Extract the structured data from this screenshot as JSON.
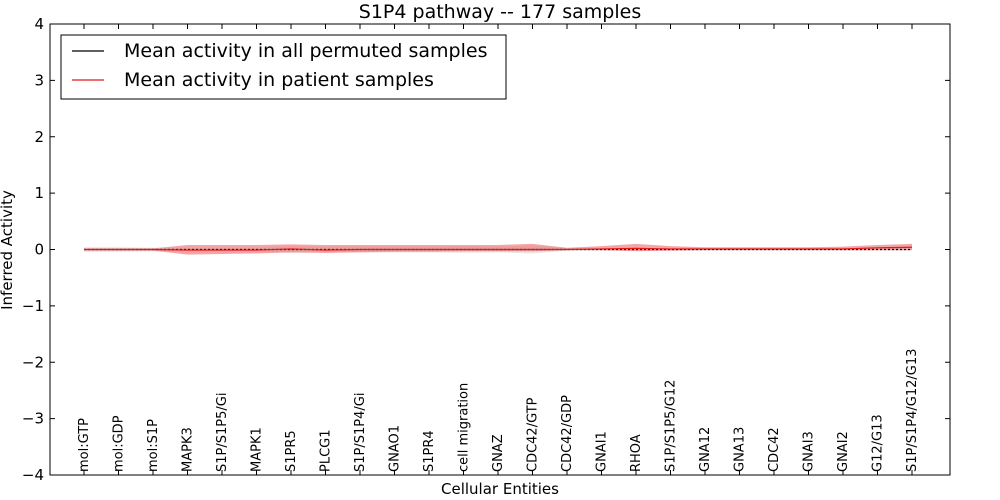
{
  "chart_data": {
    "type": "line",
    "title": "S1P4 pathway -- 177 samples",
    "xlabel": "Cellular Entities",
    "ylabel": "Inferred Activity",
    "ylim": [
      -4,
      4
    ],
    "yticks": [
      {
        "value": 4,
        "label": "4"
      },
      {
        "value": 3,
        "label": "3"
      },
      {
        "value": 2,
        "label": "2"
      },
      {
        "value": 1,
        "label": "1"
      },
      {
        "value": 0,
        "label": "0"
      },
      {
        "value": -1,
        "label": "−1"
      },
      {
        "value": -2,
        "label": "−2"
      },
      {
        "value": -3,
        "label": "−3"
      },
      {
        "value": -4,
        "label": "−4"
      }
    ],
    "categories": [
      "mol:GTP",
      "mol:GDP",
      "mol:S1P",
      "MAPK3",
      "S1P/S1P5/Gi",
      "MAPK1",
      "S1PR5",
      "PLCG1",
      "S1P/S1P4/Gi",
      "GNAO1",
      "S1PR4",
      "cell migration",
      "GNAZ",
      "CDC42/GTP",
      "CDC42/GDP",
      "GNAI1",
      "RHOA",
      "S1P/S1P5/G12",
      "GNA12",
      "GNA13",
      "CDC42",
      "GNAI3",
      "GNAI2",
      "G12/G13",
      "S1P/S1P4/G12/G13"
    ],
    "series": [
      {
        "name": "Mean activity in all permuted samples",
        "color": "#000000",
        "values": [
          0.0,
          0.0,
          0.0,
          0.0,
          0.0,
          0.0,
          0.0,
          0.0,
          0.0,
          0.0,
          0.0,
          0.0,
          0.0,
          0.0,
          0.0,
          0.0,
          0.0,
          0.0,
          0.0,
          0.0,
          0.0,
          0.0,
          0.0,
          0.0,
          0.0
        ],
        "lower": [
          -0.04,
          -0.04,
          -0.03,
          -0.03,
          -0.03,
          -0.03,
          -0.06,
          -0.05,
          -0.05,
          -0.05,
          -0.05,
          -0.06,
          -0.05,
          -0.07,
          -0.02,
          -0.02,
          -0.02,
          -0.02,
          -0.02,
          -0.02,
          -0.02,
          -0.02,
          -0.02,
          -0.02,
          -0.02
        ],
        "upper": [
          0.04,
          0.04,
          0.03,
          0.03,
          0.03,
          0.03,
          0.06,
          0.05,
          0.05,
          0.05,
          0.05,
          0.06,
          0.05,
          0.07,
          0.02,
          0.02,
          0.02,
          0.02,
          0.02,
          0.02,
          0.02,
          0.02,
          0.02,
          0.02,
          0.02
        ]
      },
      {
        "name": "Mean activity in patient samples",
        "color": "#e41a1c",
        "values": [
          0.0,
          0.0,
          0.0,
          -0.01,
          -0.01,
          -0.01,
          0.01,
          -0.01,
          0.0,
          0.0,
          0.0,
          0.0,
          0.0,
          0.0,
          0.0,
          0.01,
          0.02,
          0.01,
          0.01,
          0.01,
          0.01,
          0.01,
          0.01,
          0.03,
          0.04
        ],
        "lower": [
          -0.02,
          -0.02,
          -0.02,
          -0.09,
          -0.08,
          -0.07,
          -0.05,
          -0.06,
          -0.05,
          -0.04,
          -0.04,
          -0.03,
          -0.03,
          -0.03,
          -0.01,
          -0.01,
          -0.03,
          -0.02,
          -0.01,
          -0.01,
          -0.01,
          -0.01,
          -0.01,
          -0.01,
          -0.01
        ],
        "upper": [
          0.02,
          0.02,
          0.02,
          0.08,
          0.08,
          0.08,
          0.09,
          0.08,
          0.08,
          0.08,
          0.08,
          0.08,
          0.08,
          0.1,
          0.03,
          0.06,
          0.1,
          0.06,
          0.04,
          0.04,
          0.04,
          0.04,
          0.05,
          0.08,
          0.1
        ]
      }
    ],
    "colors": {
      "permuted_band": "#d3d3d3",
      "patient_band": "#f08080",
      "permuted_line": "#000000",
      "patient_line": "#e41a1c"
    },
    "legend_position": "top-left",
    "grid": false
  }
}
